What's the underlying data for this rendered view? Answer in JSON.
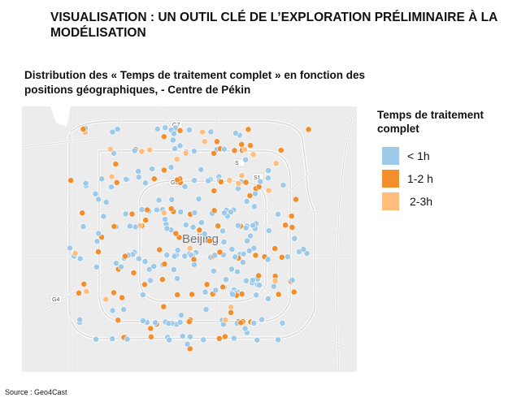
{
  "title": "VISUALISATION : UN OUTIL CLÉ DE L’EXPLORATION PRÉLIMINAIRE À LA MODÉLISATION",
  "subtitle": "Distribution des « Temps de traitement complet » en fonction des positions géographiques, - Centre de Pékin",
  "map": {
    "city_label": "Beijing",
    "road_labels": [
      "G4",
      "S1",
      "G6",
      "G7",
      "S"
    ],
    "point_counts": {
      "lt_1h": 200,
      "h1_2": 100,
      "h2_3": 25
    }
  },
  "legend": {
    "title": "Temps de traitement complet",
    "items": [
      {
        "label": "< 1h",
        "color": "#9ecae9"
      },
      {
        "label": "1-2 h",
        "color": "#f28e2b"
      },
      {
        "label": "2-3h",
        "color": "#ffbe7d"
      }
    ]
  },
  "source": "Source : Geo4Cast"
}
